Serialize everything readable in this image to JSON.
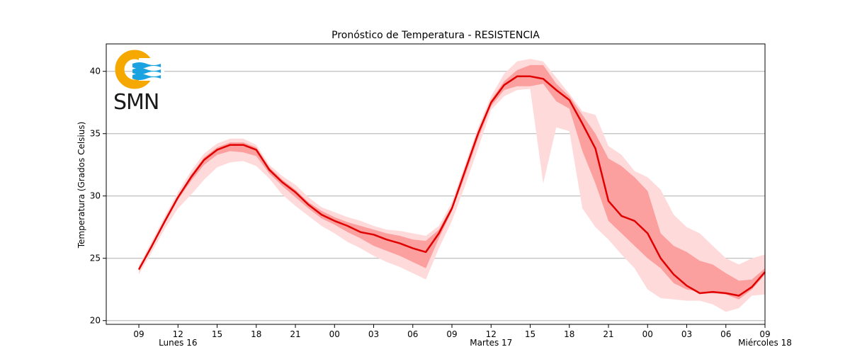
{
  "chart_data": {
    "type": "line",
    "title": "Pronóstico de Temperatura - RESISTENCIA",
    "xlabel": "",
    "ylabel": "Temperatura (Grados Celsius)",
    "ylim": [
      19.7,
      42.2
    ],
    "xlim": [
      -2.5,
      48
    ],
    "grid": "horizontal",
    "x_hours": [
      0,
      1,
      2,
      3,
      4,
      5,
      6,
      7,
      8,
      9,
      10,
      11,
      12,
      13,
      14,
      15,
      16,
      17,
      18,
      19,
      20,
      21,
      22,
      23,
      24,
      25,
      26,
      27,
      28,
      29,
      30,
      31,
      32,
      33,
      34,
      35,
      36,
      37,
      38,
      39,
      40,
      41,
      42,
      43,
      44,
      45,
      46,
      47,
      48
    ],
    "x_ticks": [
      {
        "hour": 0,
        "label": "09"
      },
      {
        "hour": 3,
        "label": "12"
      },
      {
        "hour": 6,
        "label": "15"
      },
      {
        "hour": 9,
        "label": "18"
      },
      {
        "hour": 12,
        "label": "21"
      },
      {
        "hour": 15,
        "label": "00"
      },
      {
        "hour": 18,
        "label": "03"
      },
      {
        "hour": 21,
        "label": "06"
      },
      {
        "hour": 24,
        "label": "09"
      },
      {
        "hour": 27,
        "label": "12"
      },
      {
        "hour": 30,
        "label": "15"
      },
      {
        "hour": 33,
        "label": "18"
      },
      {
        "hour": 36,
        "label": "21"
      },
      {
        "hour": 39,
        "label": "00"
      },
      {
        "hour": 42,
        "label": "03"
      },
      {
        "hour": 45,
        "label": "06"
      },
      {
        "hour": 48,
        "label": "09"
      }
    ],
    "day_labels": [
      {
        "hour": 3,
        "label": "Lunes 16"
      },
      {
        "hour": 27,
        "label": "Martes 17"
      },
      {
        "hour": 48,
        "label": "Miércoles 18"
      }
    ],
    "y_ticks": [
      20,
      25,
      30,
      35,
      40
    ],
    "series": [
      {
        "role": "median",
        "color": "#e00000",
        "values": [
          24.1,
          26.0,
          28.0,
          29.9,
          31.5,
          32.9,
          33.7,
          34.1,
          34.1,
          33.7,
          32.1,
          31.1,
          30.3,
          29.3,
          28.5,
          28.0,
          27.6,
          27.1,
          26.9,
          26.5,
          26.2,
          25.8,
          25.5,
          27.0,
          29.0,
          32.0,
          35.0,
          37.5,
          38.9,
          39.6,
          39.6,
          39.4,
          38.5,
          37.7,
          35.8,
          33.8,
          29.6,
          28.4,
          28.0,
          27.0,
          25.0,
          23.7,
          22.8,
          22.2,
          22.3,
          22.2,
          22.0,
          22.7,
          23.9
        ]
      },
      {
        "role": "band-inner",
        "color": "#fc9f9f",
        "upper": [
          24.2,
          26.1,
          28.1,
          30.0,
          31.7,
          33.1,
          33.9,
          34.3,
          34.3,
          33.9,
          32.3,
          31.3,
          30.5,
          29.5,
          28.8,
          28.3,
          27.9,
          27.6,
          27.3,
          27.0,
          26.8,
          26.5,
          26.4,
          27.3,
          29.2,
          32.2,
          35.2,
          37.7,
          39.2,
          40.1,
          40.5,
          40.5,
          39.0,
          38.0,
          36.5,
          35.0,
          33.0,
          32.4,
          31.5,
          30.4,
          27.0,
          26.0,
          25.5,
          24.8,
          24.5,
          23.8,
          23.2,
          23.3,
          24.2
        ],
        "lower": [
          24.0,
          25.9,
          27.8,
          29.7,
          31.2,
          32.5,
          33.3,
          33.6,
          33.5,
          33.2,
          31.8,
          30.8,
          29.9,
          29.0,
          28.2,
          27.7,
          27.1,
          26.6,
          26.0,
          25.6,
          25.2,
          24.7,
          24.2,
          26.6,
          28.8,
          31.6,
          34.6,
          37.2,
          38.5,
          38.8,
          38.8,
          39.0,
          37.6,
          37.0,
          33.6,
          31.0,
          28.0,
          27.0,
          26.0,
          25.0,
          24.2,
          23.0,
          22.5,
          22.3,
          22.2,
          22.1,
          21.7,
          22.5,
          23.7
        ]
      },
      {
        "role": "band-outer",
        "color": "#ffdada",
        "upper": [
          24.4,
          26.4,
          28.4,
          30.3,
          32.0,
          33.4,
          34.2,
          34.6,
          34.6,
          34.1,
          32.5,
          31.6,
          30.9,
          29.9,
          29.1,
          28.7,
          28.3,
          28.0,
          27.6,
          27.3,
          27.2,
          27.0,
          26.8,
          27.6,
          29.5,
          32.5,
          35.5,
          38.0,
          39.8,
          40.8,
          41.0,
          40.8,
          39.5,
          38.2,
          36.8,
          36.5,
          34.0,
          33.3,
          32.0,
          31.5,
          30.5,
          28.5,
          27.5,
          27.0,
          26.0,
          25.0,
          24.5,
          25.0,
          25.3
        ],
        "lower": [
          23.7,
          25.5,
          27.4,
          29.0,
          30.1,
          31.3,
          32.3,
          32.7,
          32.8,
          32.4,
          31.4,
          30.1,
          29.2,
          28.4,
          27.6,
          27.0,
          26.3,
          25.8,
          25.2,
          24.7,
          24.3,
          23.8,
          23.3,
          25.8,
          28.0,
          30.8,
          33.8,
          36.9,
          38.0,
          38.5,
          38.6,
          31.0,
          35.5,
          35.2,
          29.0,
          27.5,
          26.5,
          25.3,
          24.2,
          22.5,
          21.8,
          21.7,
          21.6,
          21.6,
          21.3,
          20.7,
          21.0,
          22.0,
          22.1
        ]
      }
    ]
  },
  "logo": {
    "text": "SMN",
    "ring_color": "#f5a800",
    "wave_color": "#1aa3e0"
  }
}
